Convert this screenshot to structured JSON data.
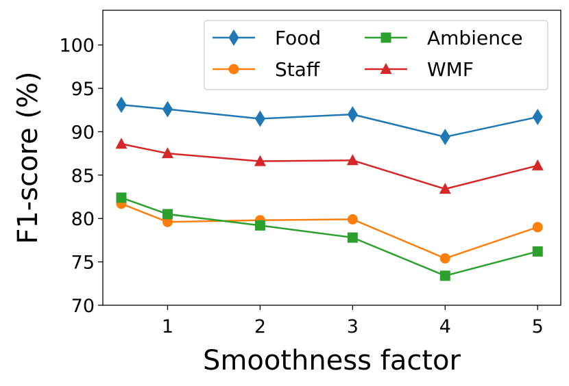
{
  "chart_data": {
    "type": "line",
    "title": "",
    "xlabel": "Smoothness factor",
    "ylabel": "F1-score (%)",
    "x": [
      0.5,
      1,
      2,
      3,
      4,
      5
    ],
    "xlim": [
      0.3,
      5.25
    ],
    "ylim": [
      70,
      104
    ],
    "xticks": [
      1,
      2,
      3,
      4,
      5
    ],
    "yticks": [
      70,
      75,
      80,
      85,
      90,
      95,
      100
    ],
    "grid": false,
    "legend_position": "top-right",
    "legend_columns": 2,
    "series": [
      {
        "name": "Food",
        "values": [
          93.1,
          92.6,
          91.5,
          92.0,
          89.4,
          91.7
        ],
        "color": "#1f77b4",
        "marker": "diamond"
      },
      {
        "name": "Staff",
        "values": [
          81.7,
          79.6,
          79.8,
          79.9,
          75.4,
          79.0
        ],
        "color": "#ff7f0e",
        "marker": "circle"
      },
      {
        "name": "Ambience",
        "values": [
          82.4,
          80.5,
          79.2,
          77.8,
          73.4,
          76.2
        ],
        "color": "#2ca02c",
        "marker": "square"
      },
      {
        "name": "WMF",
        "values": [
          88.6,
          87.5,
          86.6,
          86.7,
          83.4,
          86.1
        ],
        "color": "#d62728",
        "marker": "triangle"
      }
    ]
  }
}
